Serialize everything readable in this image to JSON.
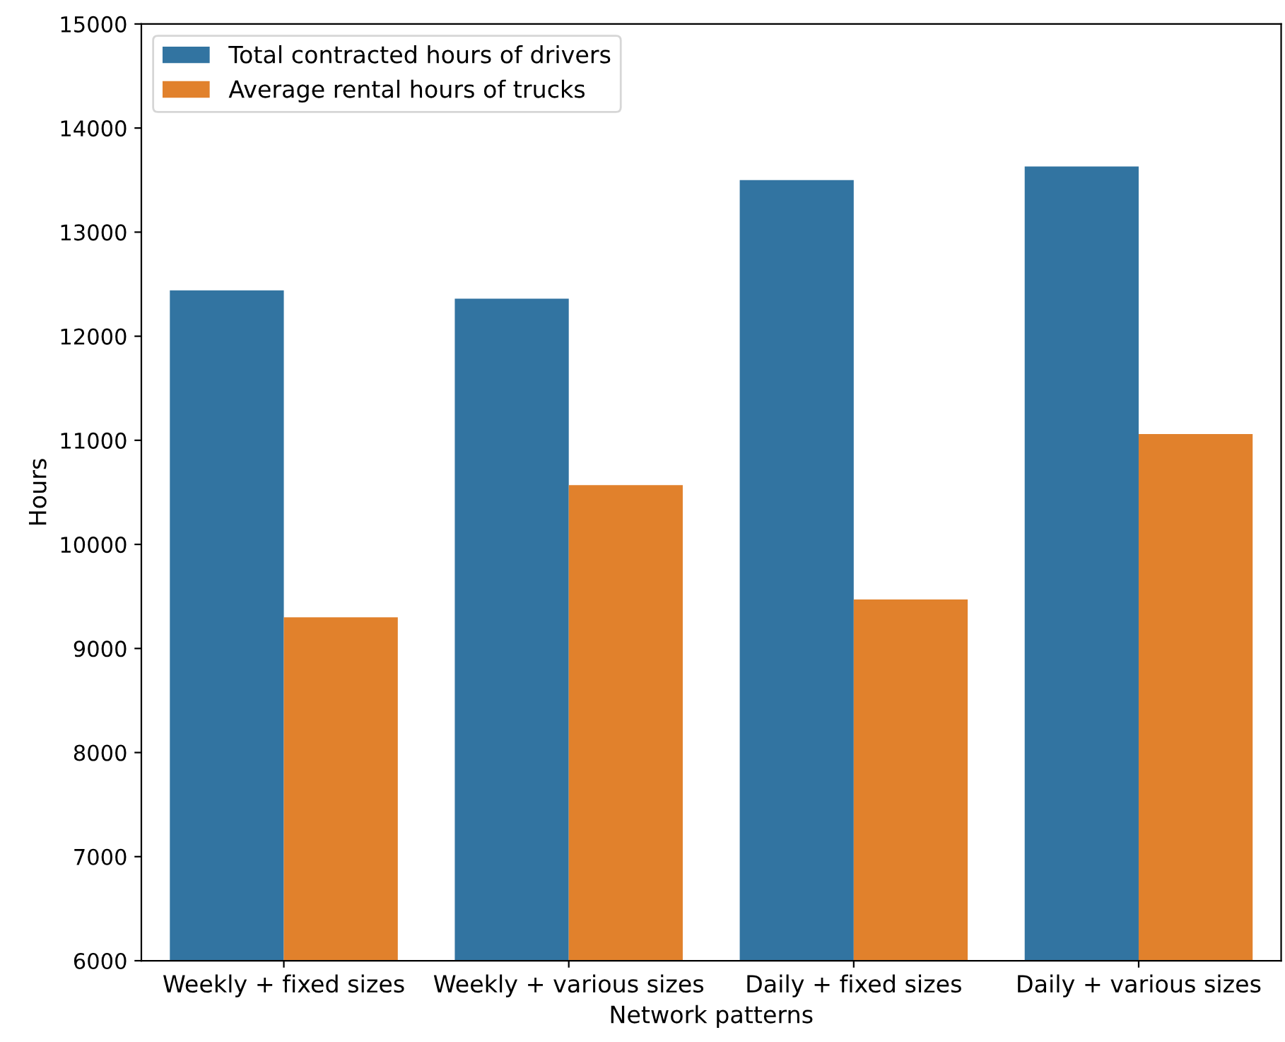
{
  "chart_data": {
    "type": "bar",
    "xlabel": "Network patterns",
    "ylabel": "Hours",
    "categories": [
      "Weekly + fixed sizes",
      "Weekly + various sizes",
      "Daily + fixed sizes",
      "Daily + various sizes"
    ],
    "series": [
      {
        "name": "Total contracted hours of drivers",
        "color": "#3274a1",
        "values": [
          12440,
          12360,
          13500,
          13630
        ]
      },
      {
        "name": "Average rental hours of trucks",
        "color": "#e1812c",
        "values": [
          9300,
          10570,
          9470,
          11060
        ]
      }
    ],
    "ylim": [
      6000,
      15000
    ],
    "yticks": [
      6000,
      7000,
      8000,
      9000,
      10000,
      11000,
      12000,
      13000,
      14000,
      15000
    ],
    "grid": false,
    "legend": "top left"
  }
}
